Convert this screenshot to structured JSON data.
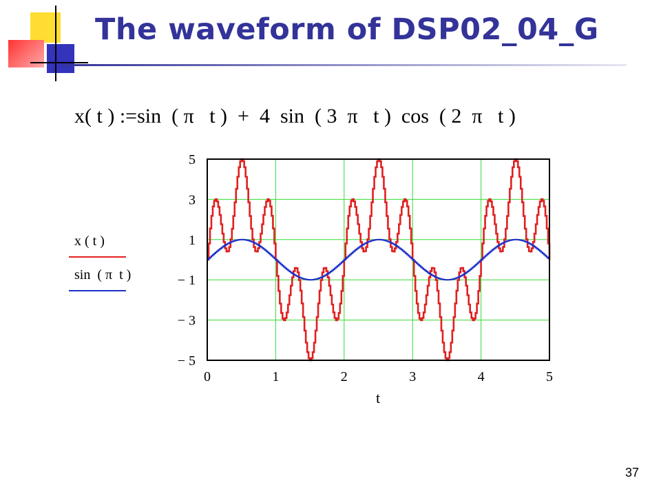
{
  "slide": {
    "title": "The waveform of DSP02_04_G",
    "formula": "x( t ) :=sin  ( π   t )  +  4  sin  ( 3  π   t )  cos  ( 2  π   t )",
    "slide_number": "37"
  },
  "colors": {
    "title": "#333399",
    "series_x": "#e02020",
    "series_sin": "#1a2fc8",
    "grid": "#33dd33",
    "frame": "#000000",
    "deco_yellow": "#ffdd33",
    "deco_red": "#ff4444",
    "deco_blue": "#3333bb"
  },
  "chart_data": {
    "type": "line",
    "x_expression": "t",
    "xlabel": "t",
    "xlim": [
      0,
      5
    ],
    "ylim": [
      -5,
      5
    ],
    "x_ticks": [
      "0",
      "1",
      "2",
      "3",
      "4",
      "5"
    ],
    "y_ticks": [
      "5",
      "3",
      "1",
      "− 1",
      "− 3",
      "− 5"
    ],
    "grid": true,
    "sample_step": 0.02,
    "series": [
      {
        "name": "x ( t )",
        "formula": "sin(πt) + 4·sin(3πt)·cos(2πt)",
        "color": "#e02020"
      },
      {
        "name": "sin  ( π  t )",
        "formula": "sin(πt)",
        "color": "#1a2fc8"
      }
    ]
  }
}
